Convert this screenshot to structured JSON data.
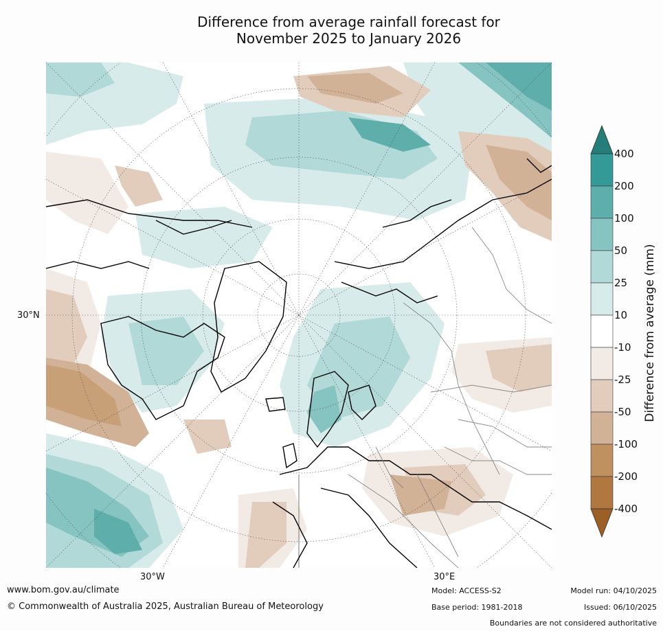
{
  "title_line1": "Difference from average rainfall forecast for",
  "title_line2": "November 2025 to January 2026",
  "map": {
    "projection": "north polar stereographic",
    "lat_label": "30°N",
    "lon_labels": {
      "west": "30°W",
      "east": "30°E"
    }
  },
  "colorbar": {
    "title": "Difference from average (mm)",
    "ticks": [
      "400",
      "200",
      "100",
      "50",
      "25",
      "10",
      "-10",
      "-25",
      "-50",
      "-100",
      "-200",
      "-400"
    ],
    "colors": {
      "gt400": "#257d7a",
      "200_400": "#339a97",
      "100_200": "#5eaeac",
      "50_100": "#86c4c2",
      "25_50": "#b0d9d8",
      "10_25": "#d7ebea",
      "neutral": "#ffffff",
      "n10_n25": "#f2ebe5",
      "n25_n50": "#e2cdbd",
      "n50_n100": "#d1b297",
      "n100_n200": "#bf915f",
      "n200_n400": "#b07840",
      "lt_n400": "#9c5f26"
    }
  },
  "footer": {
    "website": "www.bom.gov.au/climate",
    "copyright": "© Commonwealth of Australia 2025, Australian Bureau of Meteorology",
    "model": "Model: ACCESS-S2",
    "base_period": "Base period: 1981-2018",
    "model_run": "Model run: 04/10/2025",
    "issued": "Issued: 06/10/2025",
    "boundaries": "Boundaries are not considered authoritative"
  }
}
